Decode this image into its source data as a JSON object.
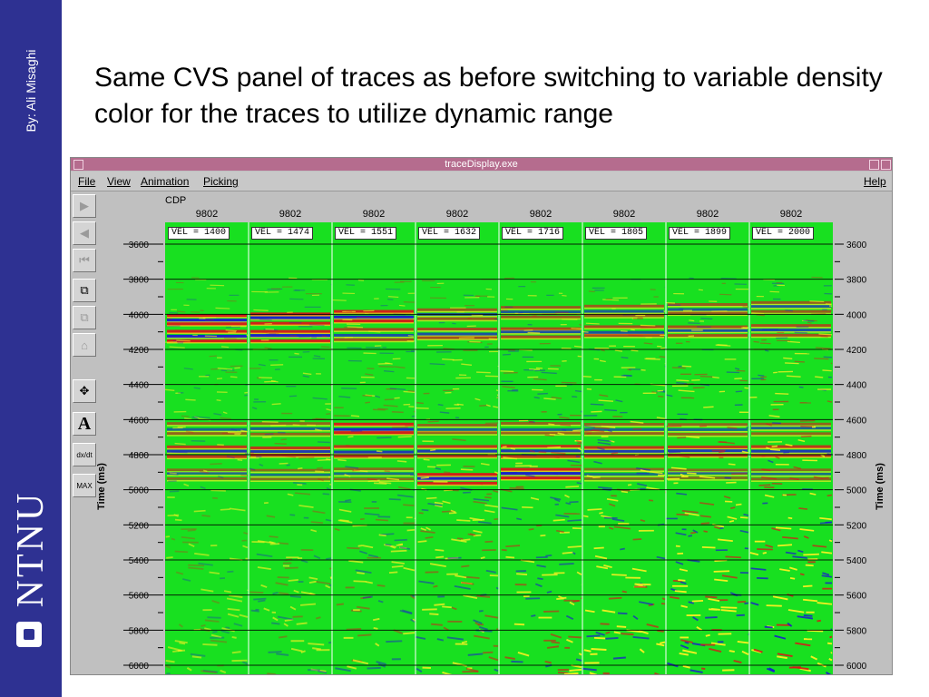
{
  "slide": {
    "author": "By: Ali Misaghi",
    "logo_text": "NTNU",
    "title": "Same CVS panel of traces as before switching to variable density color for the traces to utilize dynamic range"
  },
  "window": {
    "title": "traceDisplay.exe",
    "menu": {
      "file": "File",
      "view": "View",
      "animation": "Animation",
      "picking": "Picking",
      "help": "Help"
    },
    "toolbar": [
      {
        "name": "play-forward-icon",
        "glyph": "▶",
        "enabled": false
      },
      {
        "name": "play-backward-icon",
        "glyph": "◀",
        "enabled": false
      },
      {
        "name": "go-first-icon",
        "glyph": "⏮",
        "enabled": false
      },
      {
        "name": "copy-windows-icon",
        "glyph": "⧉",
        "enabled": true
      },
      {
        "name": "stack-windows-icon",
        "glyph": "⧉",
        "enabled": false
      },
      {
        "name": "clear-icon",
        "glyph": "⌂",
        "enabled": false
      },
      {
        "name": "move-icon",
        "glyph": "✥",
        "enabled": true
      },
      {
        "name": "annotate-icon",
        "glyph": "A",
        "enabled": true
      },
      {
        "name": "derivative-icon",
        "glyph": "dx/dt",
        "enabled": true
      },
      {
        "name": "maximize-icon",
        "glyph": "MAX",
        "enabled": true
      }
    ],
    "cdp_label": "CDP",
    "panels": [
      {
        "cdp": "9802",
        "vel": "VEL =   1400"
      },
      {
        "cdp": "9802",
        "vel": "VEL =   1474"
      },
      {
        "cdp": "9802",
        "vel": "VEL =   1551"
      },
      {
        "cdp": "9802",
        "vel": "VEL =   1632"
      },
      {
        "cdp": "9802",
        "vel": "VEL =   1716"
      },
      {
        "cdp": "9802",
        "vel": "VEL =   1805"
      },
      {
        "cdp": "9802",
        "vel": "VEL =   1899"
      },
      {
        "cdp": "9802",
        "vel": "VEL =   2000"
      }
    ],
    "time_axis": {
      "label": "Time (ms)",
      "ticks": [
        "3600",
        "3800",
        "4000",
        "4200",
        "4400",
        "4600",
        "4800",
        "5000",
        "5200",
        "5400",
        "5600",
        "5800",
        "6000"
      ]
    },
    "colors": {
      "background": "#18e020",
      "positive": "#d81818",
      "negative": "#1a1ad0",
      "mid": "#f0f020"
    }
  }
}
